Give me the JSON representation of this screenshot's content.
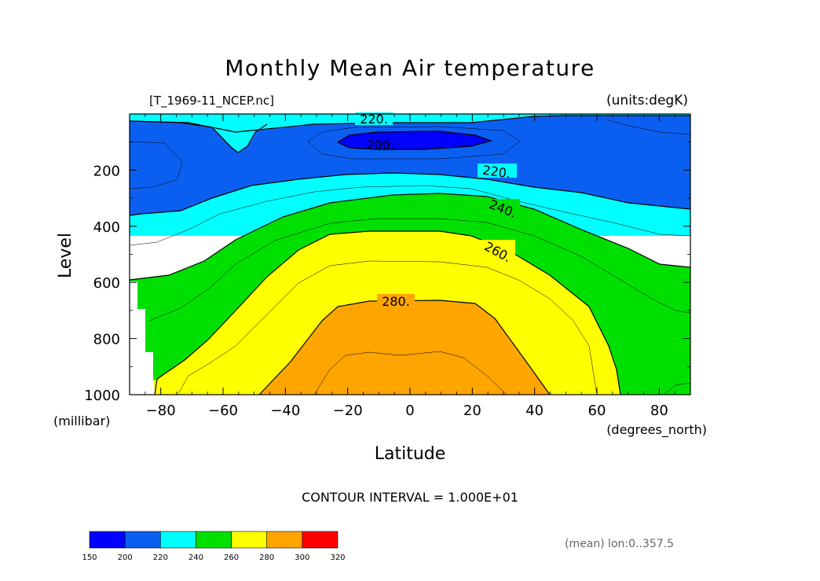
{
  "chart_data": {
    "type": "filled-contour",
    "title": "Monthly Mean Air temperature",
    "file_label": "[T_1969-11_NCEP.nc]",
    "units_label": "(units:degK)",
    "xlabel": "Latitude",
    "x_units": "(degrees_north)",
    "ylabel": "Level",
    "y_units": "(millibar)",
    "xlim": [
      -90,
      90
    ],
    "ylim": [
      1000,
      0
    ],
    "x_ticks": [
      -80,
      -60,
      -40,
      -20,
      0,
      20,
      40,
      60,
      80
    ],
    "x_tick_labels": [
      "-80",
      "-60",
      "-40",
      "-20",
      "0",
      "20",
      "40",
      "60",
      "80"
    ],
    "y_ticks": [
      200,
      400,
      600,
      800,
      1000
    ],
    "y_tick_labels": [
      "200",
      "400",
      "600",
      "800",
      "1000"
    ],
    "contour_interval_text": "CONTOUR INTERVAL = 1.000E+01",
    "subtitle_note": "(mean) lon:0..357.5",
    "contour_labels": [
      {
        "text": "220.",
        "lat": -8,
        "level": 20
      },
      {
        "text": "200.",
        "lat": -10,
        "level": 110
      },
      {
        "text": "220.",
        "lat": 30,
        "level": 200
      },
      {
        "text": "240.",
        "lat": 34,
        "level": 330
      },
      {
        "text": "260.",
        "lat": 30,
        "level": 480
      },
      {
        "text": "280.",
        "lat": -5,
        "level": 680
      }
    ],
    "colorbar": {
      "levels": [
        150,
        200,
        220,
        240,
        260,
        280,
        300,
        320
      ],
      "labels": [
        "150",
        "200",
        "220",
        "240",
        "260",
        "280",
        "300",
        "320"
      ],
      "colors": [
        "#0000ff",
        "#0a5ff0",
        "#00ffff",
        "#00e000",
        "#ffff00",
        "#ffa500",
        "#ff0000"
      ]
    },
    "regions": [
      {
        "range": "220-240",
        "color": "#00ffff"
      },
      {
        "range": "200-220",
        "color": "#0a5ff0"
      },
      {
        "range": "240-260",
        "color": "#00e000"
      },
      {
        "range": "260-280",
        "color": "#ffff00"
      },
      {
        "range": "280-300",
        "color": "#ffa500"
      },
      {
        "range": "150-200",
        "color": "#0000ff"
      }
    ],
    "missing_color": "#ffffff"
  }
}
